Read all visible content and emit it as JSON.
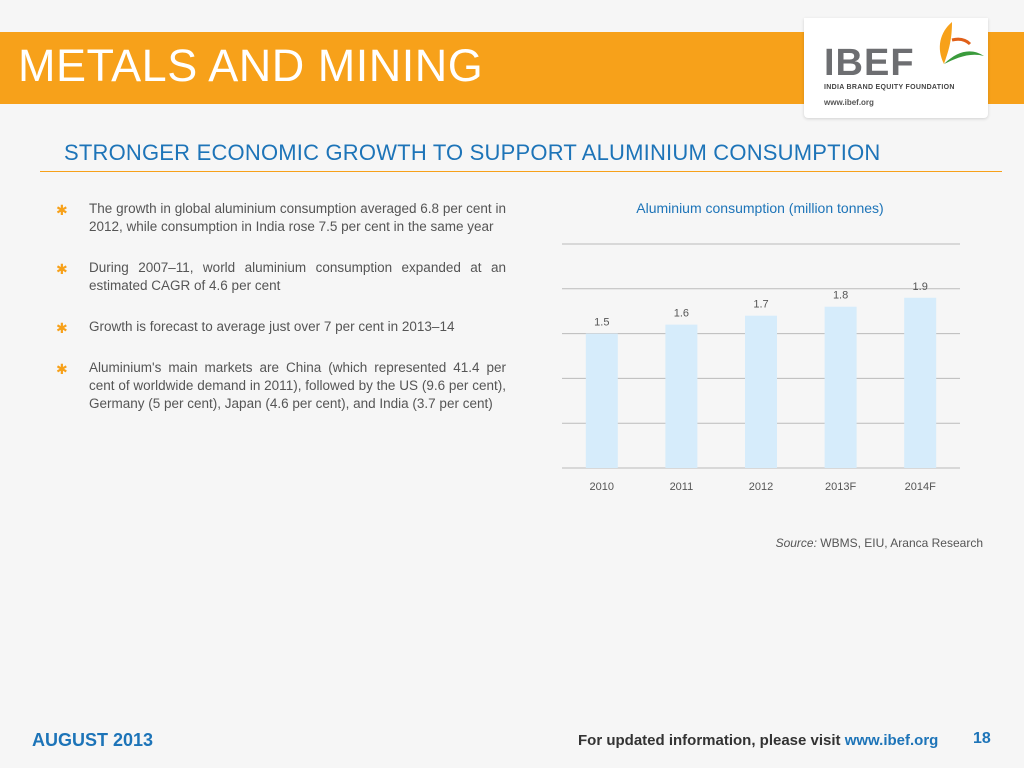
{
  "header": {
    "title": "METALS AND MINING",
    "logo_text": "IBEF",
    "logo_subtitle": "INDIA BRAND EQUITY FOUNDATION",
    "logo_url": "www.ibef.org"
  },
  "section_title": "STRONGER ECONOMIC GROWTH TO SUPPORT ALUMINIUM CONSUMPTION",
  "bullets": [
    "The growth in global aluminium consumption averaged 6.8 per cent in 2012, while consumption in India rose 7.5 per cent in the same year",
    "During 2007–11, world aluminium consumption expanded at an estimated CAGR of 4.6 per cent",
    "Growth is forecast to average just over 7 per cent in 2013–14",
    "Aluminium's main markets are China (which represented 41.4 per cent of worldwide demand in 2011), followed by the US (9.6 per cent), Germany (5 per cent), Japan (4.6 per cent), and India (3.7 per cent)"
  ],
  "chart_data": {
    "type": "bar",
    "title": "Aluminium consumption (million tonnes)",
    "categories": [
      "2010",
      "2011",
      "2012",
      "2013F",
      "2014F"
    ],
    "values": [
      1.5,
      1.6,
      1.7,
      1.8,
      1.9
    ],
    "data_labels": [
      "1.5",
      "1.6",
      "1.7",
      "1.8",
      "1.9"
    ],
    "ylim": [
      0,
      2.5
    ],
    "grid": true,
    "bar_color": "#d6ecfb"
  },
  "source": {
    "label": "Source:",
    "text": "WBMS, EIU, Aranca Research"
  },
  "footer": {
    "date": "AUGUST 2013",
    "visit_text": "For updated information, please visit",
    "url": "www.ibef.org",
    "page_number": "18"
  },
  "colors": {
    "accent_orange": "#f7a11a",
    "brand_blue": "#1d74b8"
  }
}
